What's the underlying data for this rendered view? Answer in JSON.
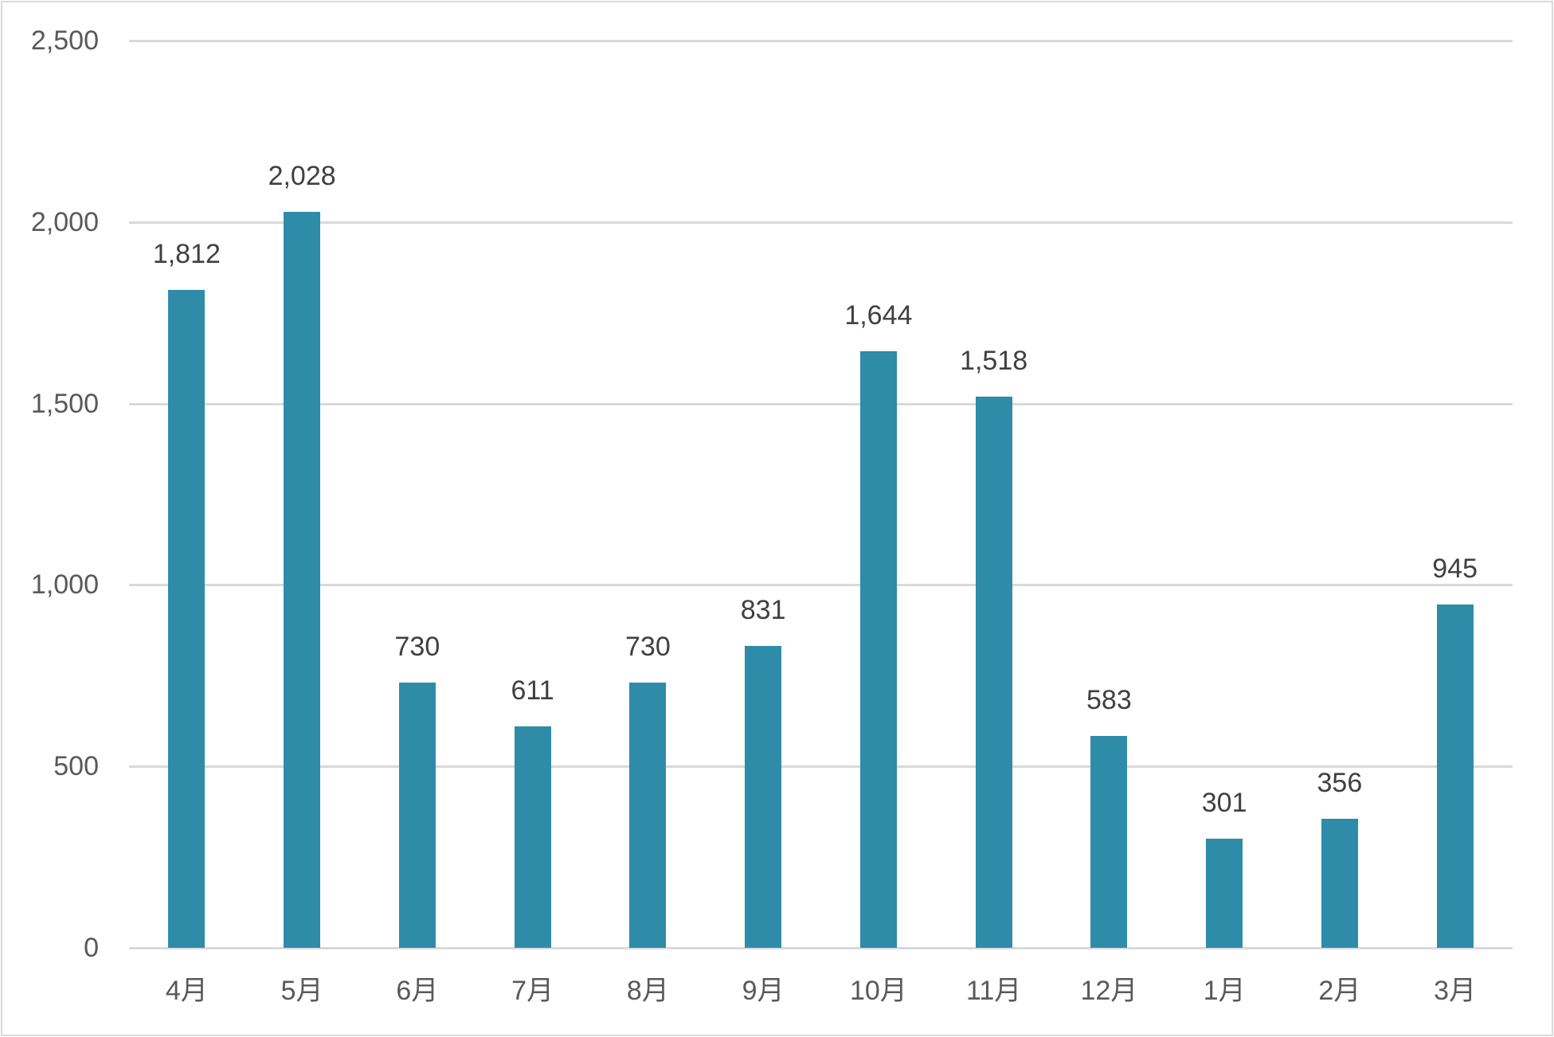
{
  "chart_data": {
    "type": "bar",
    "title": "",
    "xlabel": "",
    "ylabel": "",
    "categories": [
      "4月",
      "5月",
      "6月",
      "7月",
      "8月",
      "9月",
      "10月",
      "11月",
      "12月",
      "1月",
      "2月",
      "3月"
    ],
    "values": [
      1812,
      2028,
      730,
      611,
      730,
      831,
      1644,
      1518,
      583,
      301,
      356,
      945
    ],
    "data_labels": [
      "1,812",
      "2,028",
      "730",
      "611",
      "730",
      "831",
      "1,644",
      "1,518",
      "583",
      "301",
      "356",
      "945"
    ],
    "ylim": [
      0,
      2500
    ],
    "yticks": [
      0,
      500,
      1000,
      1500,
      2000,
      2500
    ],
    "ytick_labels": [
      "0",
      "500",
      "1,000",
      "1,500",
      "2,000",
      "2,500"
    ],
    "grid": true,
    "legend": null,
    "series": [
      {
        "name": "",
        "values": [
          1812,
          2028,
          730,
          611,
          730,
          831,
          1644,
          1518,
          583,
          301,
          356,
          945
        ],
        "color": "#2e8ca8"
      }
    ]
  },
  "colors": {
    "bar": "#2e8ca8",
    "gridline": "#d9d9d9",
    "axis_text": "#595959",
    "data_label_text": "#404040",
    "border": "#d9d9d9"
  }
}
